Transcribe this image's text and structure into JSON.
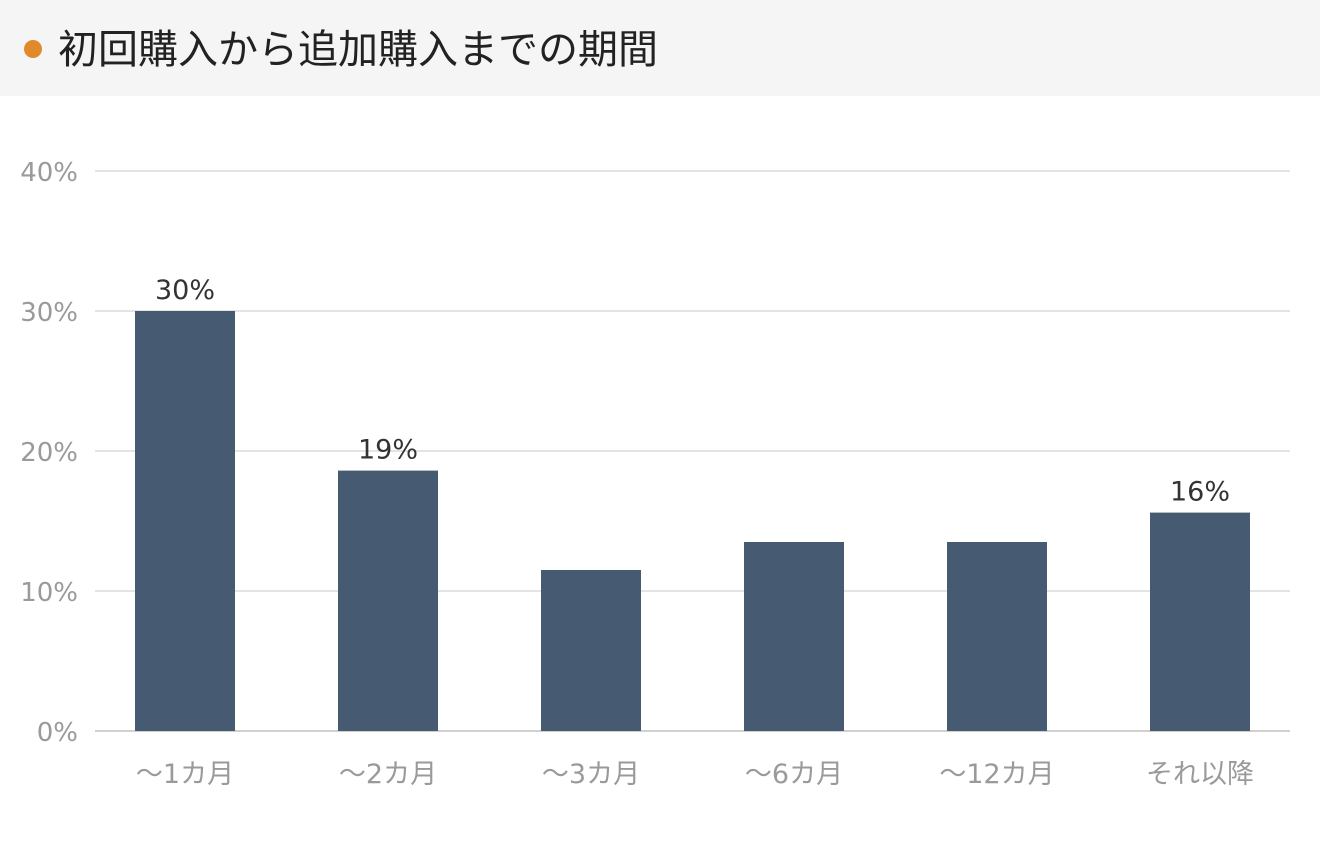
{
  "header": {
    "title": "初回購入から追加購入までの期間",
    "dot_color": "#e08a2c"
  },
  "chart_data": {
    "type": "bar",
    "title": "初回購入から追加購入までの期間",
    "categories": [
      "〜1カ月",
      "〜2カ月",
      "〜3カ月",
      "〜6カ月",
      "〜12カ月",
      "それ以降"
    ],
    "values": [
      30,
      18.6,
      11.5,
      13.5,
      13.5,
      15.6
    ],
    "data_labels": [
      "30%",
      "19%",
      "",
      "",
      "",
      "16%"
    ],
    "ylim": [
      0,
      40
    ],
    "y_ticks": [
      0,
      10,
      20,
      30,
      40
    ],
    "y_tick_labels": [
      "0%",
      "10%",
      "20%",
      "30%",
      "40%"
    ],
    "xlabel": "",
    "ylabel": "",
    "grid": true,
    "bar_color": "#465b72"
  }
}
